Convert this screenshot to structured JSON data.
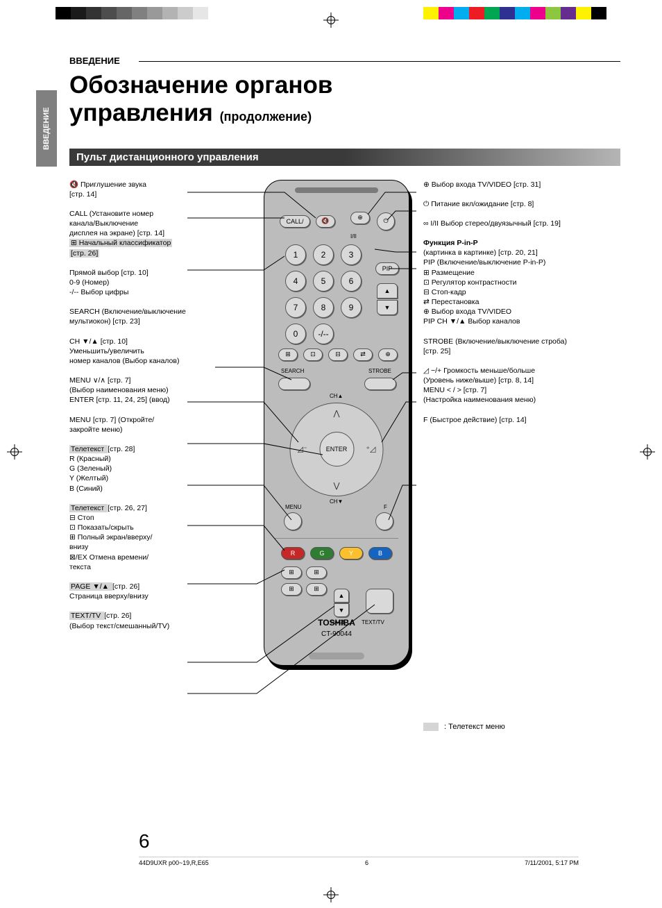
{
  "color_bars": {
    "grayscale": [
      "#000000",
      "#1a1a1a",
      "#333333",
      "#4d4d4d",
      "#666666",
      "#808080",
      "#999999",
      "#b3b3b3",
      "#cccccc",
      "#e6e6e6",
      "#ffffff"
    ],
    "color": [
      "#fff200",
      "#ec008c",
      "#00aeef",
      "#ed1c24",
      "#00a651",
      "#2e3192",
      "#00adef",
      "#ec008c",
      "#8dc63f",
      "#662d91",
      "#fff200",
      "#000000"
    ]
  },
  "side_tab": "ВВЕДЕНИЕ",
  "section_label": "ВВЕДЕНИЕ",
  "main_title_line1": "Обозначение органов",
  "main_title_line2": "управления",
  "subtitle": "(продолжение)",
  "subheading": "Пульт дистанционного управления",
  "remote": {
    "top_small_labels": {
      "call": "CALL/",
      "mute_icon": "🔇",
      "tv_video_icon": "⊕",
      "i_ii": "I/II"
    },
    "numerals": [
      "1",
      "2",
      "3",
      "4",
      "5",
      "6",
      "7",
      "8",
      "9",
      "0",
      "-/--"
    ],
    "pip": "PIP",
    "pip_ch_up": "▲",
    "pip_ch_down": "▼",
    "mid_icons": [
      "⊞",
      "⊡",
      "⊟",
      "⇄",
      "⊕"
    ],
    "search": "SEARCH",
    "strobe": "STROBE",
    "enter": "ENTER",
    "menu": "MENU",
    "f": "F",
    "color_btns": [
      "R",
      "G",
      "Y",
      "B"
    ],
    "color_btn_colors": [
      "#c62828",
      "#2e7d32",
      "#fbc02d",
      "#1565c0"
    ],
    "page": "PAGE",
    "texttv": "TEXT/TV",
    "brand": "TOSHIBA",
    "model": "CT-90044",
    "ch_label": "CH"
  },
  "left_callouts": [
    {
      "lines": [
        "🔇 Приглушение звука",
        "[стр. 14]"
      ]
    },
    {
      "lines": [
        "CALL (Установите номер",
        "канала/Выключение",
        "дисплея на экране) [стр. 14]"
      ],
      "tt": [
        "⊞ Начальный классификатор",
        "[стр. 26]"
      ]
    },
    {
      "lines": [
        "Прямой выбор [стр. 10]",
        "0-9 (Номер)",
        "-/-- Выбор цифры"
      ]
    },
    {
      "lines": [
        "SEARCH (Включение/выключение",
        "мультиокон) [стр. 23]"
      ]
    },
    {
      "lines": [
        "CH ▼/▲  [стр. 10]",
        "Уменьшить/увеличить",
        "номер каналов (Выбор каналов)"
      ]
    },
    {
      "lines": [
        "MENU ∨/∧ [стр. 7]",
        "(Выбор наименования меню)",
        "ENTER [стр. 11, 24, 25] (ввод)"
      ]
    },
    {
      "lines": [
        "MENU [стр. 7] (Откройте/",
        "закройте меню)"
      ]
    },
    {
      "tt_head": "Телетекст",
      "head_rest": "[стр. 28]",
      "lines": [
        "R (Красный)",
        "G (Зеленый)",
        "Y (Желтый)",
        "B (Синий)"
      ]
    },
    {
      "tt_head": "Телетекст",
      "head_rest": "[стр. 26, 27]",
      "lines": [
        "⊟ Стоп",
        "⊡ Показать/скрыть",
        "⊞ Полный экран/вверху/",
        "    внизу",
        "⊠/EX Отмена времени/",
        "    текста"
      ]
    },
    {
      "tt_head": "PAGE ▼/▲",
      "head_rest": "[стр. 26]",
      "lines": [
        "Страница вверху/внизу"
      ]
    },
    {
      "tt_head": "TEXT/TV",
      "head_rest": "[стр. 26]",
      "lines": [
        "(Выбор текст/смешанный/TV)"
      ]
    }
  ],
  "right_callouts": [
    {
      "lines": [
        "⊕ Выбор входа TV/VIDEO [стр. 31]"
      ]
    },
    {
      "lines": [
        "⏻ Питание вкл/ожидание [стр. 8]"
      ]
    },
    {
      "lines": [
        "∞ I/II Выбор стерео/двуязычный [стр. 19]"
      ]
    },
    {
      "bold_head": "Функция P-in-P",
      "lines": [
        "(картинка в картинке) [стр. 20, 21]",
        "PIP (Включение/выключение P-in-P)",
        "⊞  Размещение",
        "⊡  Регулятор контрастности",
        "⊟  Стоп-кадр",
        "⇄  Перестановка",
        "⊕  Выбор входа TV/VIDEO",
        "PIP CH ▼/▲ Выбор каналов"
      ]
    },
    {
      "lines": [
        "STROBE (Включение/выключение строба)",
        "[стр. 25]"
      ]
    },
    {
      "lines": [
        "◿ −/+ Громкость меньше/больше",
        "(Уровень ниже/выше) [стр. 8, 14]",
        "MENU < / >  [стр. 7]",
        "(Настройка наименования меню)"
      ]
    },
    {
      "lines": [
        "F (Быстрое действие) [стр. 14]"
      ]
    }
  ],
  "legend": ": Телетекст меню",
  "page_number": "6",
  "footer": {
    "file": "44D9UXR p00~19,R,E65",
    "page": "6",
    "date": "7/11/2001, 5:17 PM"
  }
}
